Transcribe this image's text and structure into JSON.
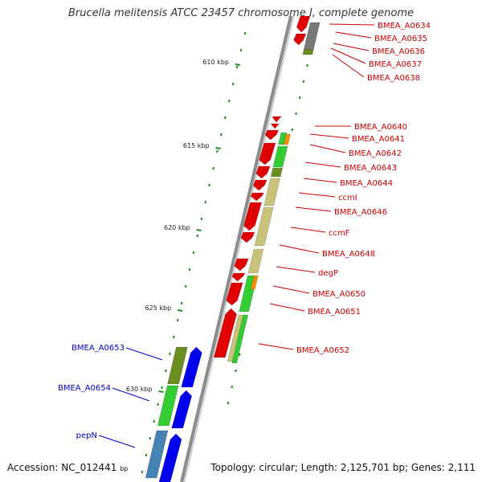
{
  "title": "Brucella melitensis ATCC 23457 chromosome I, complete genome",
  "accession_label": "Accession: NC_012441",
  "accession_unit": "bp",
  "topology_text": "Topology: circular; Length: 2,125,701 bp; Genes: 2,111",
  "colors": {
    "backbone": "#8c8c8c",
    "red_gene": "#e00000",
    "green": "#33cc33",
    "olive": "#6b8e23",
    "khaki": "#c8c27a",
    "blue": "#0000ee",
    "steelblue": "#4682b4",
    "orange": "#ff8c00",
    "gray": "#777777",
    "label_red": "#cc0000",
    "label_blue": "#0000cc",
    "tick_green": "#1e8c1e"
  },
  "ticks": [
    {
      "label": "610 kbp"
    },
    {
      "label": "615 kbp"
    },
    {
      "label": "620 kbp"
    },
    {
      "label": "625 kbp"
    },
    {
      "label": "630 kbp"
    }
  ],
  "right_labels": [
    {
      "text": "BMEA_A0634"
    },
    {
      "text": "BMEA_A0635"
    },
    {
      "text": "BMEA_A0636"
    },
    {
      "text": "BMEA_A0637"
    },
    {
      "text": "BMEA_A0638"
    },
    {
      "text": "BMEA_A0640"
    },
    {
      "text": "BMEA_A0641"
    },
    {
      "text": "BMEA_A0642"
    },
    {
      "text": "BMEA_A0643"
    },
    {
      "text": "BMEA_A0644"
    },
    {
      "text": "ccmI"
    },
    {
      "text": "BMEA_A0646"
    },
    {
      "text": "ccmF"
    },
    {
      "text": "BMEA_A0648"
    },
    {
      "text": "degP"
    },
    {
      "text": "BMEA_A0650"
    },
    {
      "text": "BMEA_A0651"
    },
    {
      "text": "BMEA_A0652"
    }
  ],
  "left_labels": [
    {
      "text": "BMEA_A0653"
    },
    {
      "text": "BMEA_A0654"
    },
    {
      "text": "pepN"
    }
  ]
}
